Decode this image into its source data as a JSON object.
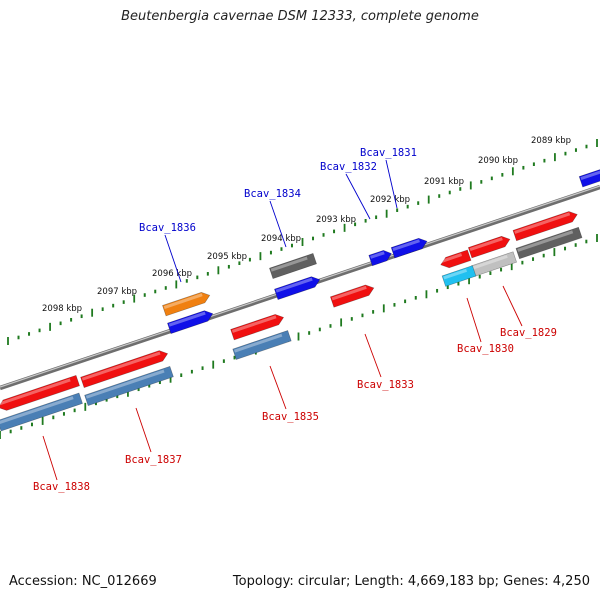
{
  "title": "Beutenbergia cavernae DSM 12333, complete genome",
  "footer": {
    "accession": "Accession: NC_012669",
    "summary": "Topology: circular; Length: 4,669,183 bp; Genes: 4,250"
  },
  "colors": {
    "backbone": "#7a7a7a",
    "tick": "#1f7a1f",
    "label_forward": "#0000cc",
    "label_reverse": "#cc0000",
    "red": "#f01010",
    "blue": "#1010e8",
    "gray": "#606060",
    "steel": "#4a7fb5",
    "orange": "#f08010",
    "cyan": "#20c0f0",
    "lightgray": "#c0c0c0"
  },
  "kbp_labels": [
    "2089 kbp",
    "2090 kbp",
    "2091 kbp",
    "2092 kbp",
    "2093 kbp",
    "2094 kbp",
    "2095 kbp",
    "2096 kbp",
    "2097 kbp",
    "2098 kbp"
  ],
  "gene_labels": {
    "top": [
      "Bcav_1831",
      "Bcav_1832",
      "Bcav_1834",
      "Bcav_1836"
    ],
    "bottom": [
      "Bcav_1829",
      "Bcav_1830",
      "Bcav_1833",
      "Bcav_1835",
      "Bcav_1837",
      "Bcav_1838"
    ]
  }
}
